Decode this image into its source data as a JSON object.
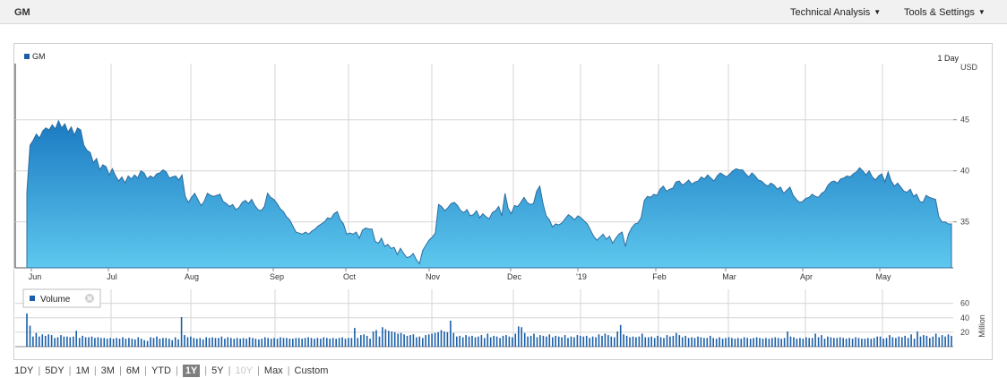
{
  "header": {
    "ticker": "GM",
    "technical_analysis_label": "Technical Analysis",
    "tools_settings_label": "Tools & Settings"
  },
  "colors": {
    "accent": "#1a73b8",
    "area_top": "#1b7ac2",
    "area_bottom": "#5ec8ee",
    "volume_bar": "#1a5fa8",
    "grid": "#d6d6d6"
  },
  "chart_data": [
    {
      "type": "area",
      "legend": "GM",
      "interval_label": "1 Day",
      "currency_label": "USD",
      "y_ticks": [
        "45",
        "40",
        "35"
      ],
      "ylim": [
        30.5,
        50.5
      ],
      "x_ticks": [
        "Jun",
        "Jul",
        "Aug",
        "Sep",
        "Oct",
        "Nov",
        "Dec",
        "'19",
        "Feb",
        "Mar",
        "Apr",
        "May"
      ],
      "series": [
        {
          "values": [
            37.9,
            42.5,
            43.0,
            43.6,
            43.2,
            43.9,
            44.2,
            44.0,
            44.5,
            44.1,
            44.9,
            44.2,
            44.6,
            43.8,
            44.3,
            43.5,
            44.2,
            44.0,
            42.5,
            42.0,
            41.8,
            40.8,
            41.2,
            40.1,
            40.6,
            40.4,
            39.6,
            40.2,
            39.5,
            39.0,
            39.4,
            38.8,
            39.5,
            39.2,
            39.6,
            39.3,
            40.0,
            39.8,
            39.2,
            39.5,
            39.3,
            39.7,
            39.8,
            40.1,
            39.9,
            39.3,
            39.4,
            39.5,
            39.1,
            39.6,
            37.5,
            36.9,
            37.4,
            37.8,
            37.2,
            36.6,
            37.0,
            37.8,
            37.6,
            37.5,
            37.6,
            37.7,
            37.0,
            36.8,
            36.5,
            36.7,
            36.2,
            36.4,
            36.9,
            37.1,
            36.8,
            37.2,
            36.6,
            36.2,
            36.1,
            36.5,
            37.8,
            37.4,
            37.2,
            36.8,
            36.3,
            36.0,
            35.5,
            35.2,
            34.6,
            34.0,
            33.9,
            33.8,
            34.0,
            33.8,
            34.1,
            34.3,
            34.6,
            34.8,
            35.0,
            35.4,
            35.3,
            35.8,
            36.0,
            35.2,
            34.8,
            33.8,
            33.9,
            33.8,
            34.0,
            33.4,
            34.2,
            34.4,
            34.3,
            34.3,
            33.1,
            32.9,
            33.4,
            32.6,
            32.8,
            32.4,
            32.5,
            31.8,
            32.4,
            31.9,
            31.5,
            31.6,
            31.9,
            31.3,
            30.9,
            32.2,
            32.7,
            33.2,
            33.5,
            33.9,
            36.7,
            36.5,
            36.1,
            36.4,
            36.8,
            36.9,
            36.6,
            36.1,
            35.9,
            36.2,
            35.6,
            35.7,
            36.1,
            35.4,
            35.8,
            35.5,
            35.3,
            35.9,
            36.1,
            36.5,
            35.6,
            37.8,
            36.3,
            35.8,
            36.6,
            36.5,
            36.9,
            37.4,
            36.9,
            36.7,
            36.8,
            38.0,
            38.5,
            36.8,
            35.6,
            35.2,
            34.5,
            34.8,
            34.7,
            34.9,
            35.3,
            35.7,
            35.5,
            35.2,
            35.6,
            35.4,
            35.1,
            34.8,
            34.2,
            33.6,
            33.2,
            33.5,
            33.8,
            33.3,
            33.6,
            32.9,
            33.4,
            33.8,
            34.0,
            32.6,
            33.8,
            34.4,
            34.8,
            34.9,
            35.4,
            37.1,
            37.5,
            37.4,
            37.7,
            37.6,
            38.2,
            38.5,
            38.0,
            38.2,
            38.3,
            38.9,
            39.0,
            38.6,
            38.8,
            39.1,
            38.7,
            38.9,
            39.0,
            39.4,
            39.2,
            39.6,
            39.3,
            39.0,
            39.5,
            39.8,
            39.6,
            39.4,
            39.7,
            40.0,
            40.2,
            40.1,
            40.1,
            39.7,
            39.4,
            39.8,
            39.5,
            39.1,
            39.0,
            38.7,
            38.5,
            38.8,
            38.6,
            38.2,
            38.4,
            37.8,
            38.1,
            38.4,
            37.6,
            37.2,
            36.9,
            37.0,
            37.3,
            37.4,
            37.7,
            37.5,
            37.4,
            37.8,
            38.0,
            38.6,
            38.9,
            39.0,
            38.8,
            39.2,
            39.3,
            39.5,
            39.4,
            39.7,
            39.9,
            40.3,
            40.0,
            39.6,
            40.0,
            39.4,
            39.1,
            39.5,
            39.7,
            38.9,
            39.9,
            39.0,
            38.5,
            38.8,
            38.4,
            38.0,
            37.9,
            38.2,
            37.5,
            37.7,
            37.0,
            36.9,
            37.6,
            37.4,
            37.3,
            37.2,
            35.5,
            35.0,
            35.0,
            34.8,
            34.8
          ]
        }
      ]
    },
    {
      "type": "bar",
      "legend": "Volume",
      "unit_label": "Million",
      "y_ticks": [
        "60",
        "40",
        "20"
      ],
      "ylim": [
        0,
        72
      ],
      "series": [
        {
          "values": [
            46,
            29,
            14,
            19,
            14,
            17,
            15,
            17,
            16,
            12,
            13,
            16,
            14,
            14,
            13,
            14,
            22,
            12,
            15,
            13,
            13,
            14,
            12,
            13,
            12,
            12,
            11,
            12,
            11,
            12,
            11,
            13,
            11,
            12,
            11,
            10,
            13,
            11,
            9,
            8,
            13,
            12,
            14,
            11,
            12,
            12,
            11,
            9,
            13,
            10,
            41,
            16,
            13,
            14,
            12,
            11,
            12,
            10,
            13,
            12,
            13,
            12,
            12,
            14,
            11,
            13,
            12,
            11,
            12,
            11,
            12,
            11,
            13,
            12,
            11,
            10,
            11,
            13,
            12,
            11,
            12,
            11,
            13,
            12,
            12,
            11,
            11,
            12,
            12,
            11,
            12,
            13,
            12,
            11,
            12,
            11,
            13,
            12,
            11,
            12,
            11,
            12,
            13,
            11,
            12,
            12,
            26,
            12,
            16,
            17,
            15,
            11,
            21,
            23,
            14,
            27,
            24,
            22,
            21,
            20,
            18,
            19,
            17,
            15,
            16,
            17,
            13,
            14,
            12,
            16,
            17,
            18,
            19,
            20,
            23,
            21,
            20,
            36,
            19,
            14,
            15,
            13,
            16,
            14,
            15,
            13,
            14,
            16,
            12,
            18,
            13,
            15,
            14,
            12,
            15,
            16,
            14,
            13,
            18,
            28,
            27,
            19,
            14,
            15,
            18,
            13,
            16,
            15,
            14,
            17,
            13,
            15,
            14,
            13,
            16,
            12,
            14,
            13,
            16,
            15,
            14,
            15,
            12,
            14,
            13,
            17,
            15,
            18,
            16,
            14,
            13,
            21,
            30,
            17,
            15,
            13,
            14,
            13,
            14,
            18,
            13,
            13,
            14,
            12,
            15,
            13,
            12,
            16,
            14,
            15,
            19,
            16,
            13,
            15,
            12,
            13,
            12,
            14,
            13,
            12,
            12,
            15,
            12,
            11,
            13,
            11,
            12,
            13,
            12,
            11,
            12,
            11,
            13,
            12,
            11,
            12,
            13,
            12,
            11,
            12,
            11,
            12,
            13,
            12,
            11,
            12,
            21,
            14,
            13,
            11,
            12,
            11,
            13,
            12,
            12,
            18,
            13,
            16,
            11,
            14,
            13,
            12,
            12,
            13,
            12,
            11,
            12,
            11,
            13,
            12,
            11,
            11,
            12,
            11,
            12,
            14,
            14,
            11,
            12,
            16,
            13,
            12,
            14,
            13,
            15,
            12,
            17,
            11,
            21,
            14,
            16,
            15,
            12,
            14,
            18,
            13,
            16,
            14,
            17,
            15
          ]
        }
      ]
    }
  ],
  "range_selector": [
    {
      "label": "1DY",
      "state": "normal"
    },
    {
      "label": "5DY",
      "state": "normal"
    },
    {
      "label": "1M",
      "state": "normal"
    },
    {
      "label": "3M",
      "state": "normal"
    },
    {
      "label": "6M",
      "state": "normal"
    },
    {
      "label": "YTD",
      "state": "normal"
    },
    {
      "label": "1Y",
      "state": "active"
    },
    {
      "label": "5Y",
      "state": "normal"
    },
    {
      "label": "10Y",
      "state": "disabled"
    },
    {
      "label": "Max",
      "state": "normal"
    },
    {
      "label": "Custom",
      "state": "normal"
    }
  ]
}
